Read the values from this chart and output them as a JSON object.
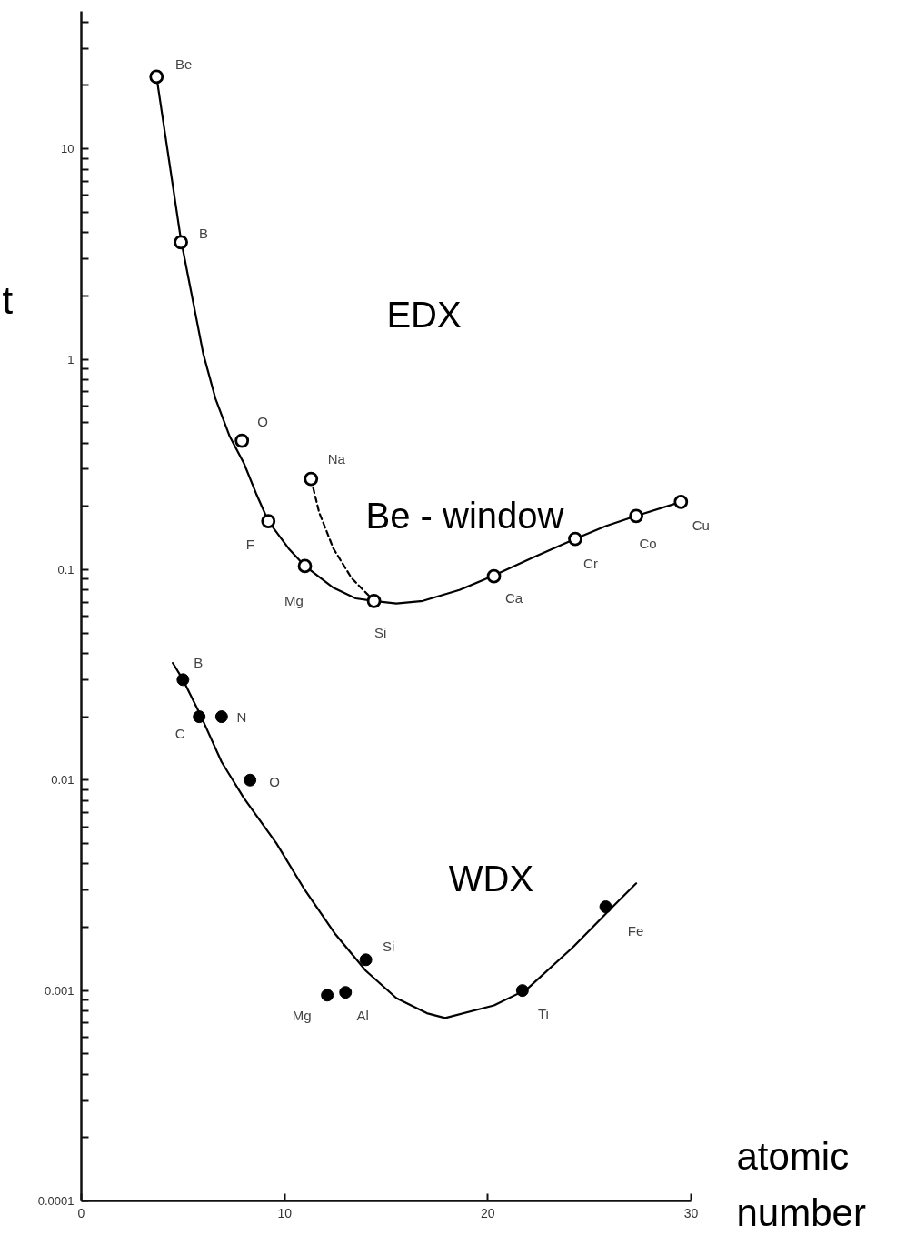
{
  "chart_data": {
    "type": "line",
    "xlabel": "atomic number",
    "ylabel": "t",
    "log": "y",
    "grid": false,
    "xlim": [
      0,
      30
    ],
    "xticks": [
      0,
      10,
      20,
      30
    ],
    "ylim": [
      0.0001,
      45
    ],
    "yticks": [
      0.0001,
      {
        "value": 0.0002,
        "label": null
      },
      {
        "value": 0.0003,
        "label": null
      },
      {
        "value": 0.0004,
        "label": null
      },
      {
        "value": 0.0005,
        "label": null
      },
      {
        "value": 0.0006,
        "label": null
      },
      {
        "value": 0.0007,
        "label": null
      },
      {
        "value": 0.0008,
        "label": null
      },
      {
        "value": 0.0009,
        "label": null
      },
      0.001,
      {
        "value": 0.002,
        "label": null
      },
      {
        "value": 0.003,
        "label": null
      },
      {
        "value": 0.004,
        "label": null
      },
      {
        "value": 0.005,
        "label": null
      },
      {
        "value": 0.006,
        "label": null
      },
      {
        "value": 0.007,
        "label": null
      },
      {
        "value": 0.008,
        "label": null
      },
      {
        "value": 0.009,
        "label": null
      },
      0.01,
      {
        "value": 0.02,
        "label": null
      },
      {
        "value": 0.03,
        "label": null
      },
      {
        "value": 0.04,
        "label": null
      },
      {
        "value": 0.05,
        "label": null
      },
      {
        "value": 0.06,
        "label": null
      },
      {
        "value": 0.07,
        "label": null
      },
      {
        "value": 0.08,
        "label": null
      },
      {
        "value": 0.09,
        "label": null
      },
      0.1,
      {
        "value": 0.2,
        "label": null
      },
      {
        "value": 0.3,
        "label": null
      },
      {
        "value": 0.4,
        "label": null
      },
      {
        "value": 0.5,
        "label": null
      },
      {
        "value": 0.6,
        "label": null
      },
      {
        "value": 0.7,
        "label": null
      },
      {
        "value": 0.8,
        "label": null
      },
      {
        "value": 0.9,
        "label": null
      },
      1,
      {
        "value": 2,
        "label": null
      },
      {
        "value": 3,
        "label": null
      },
      {
        "value": 4,
        "label": null
      },
      {
        "value": 5,
        "label": null
      },
      {
        "value": 6,
        "label": null
      },
      {
        "value": 7,
        "label": null
      },
      {
        "value": 8,
        "label": null
      },
      {
        "value": 9,
        "label": null
      },
      10,
      {
        "value": 20,
        "label": null
      },
      {
        "value": 30,
        "label": null
      },
      {
        "value": 40,
        "label": null
      }
    ],
    "series": [
      {
        "color": "#000000",
        "line_style": "solid",
        "x": [
          3.7,
          4.9,
          5.4,
          6.0,
          6.6,
          7.3,
          8.0,
          8.6,
          9.2,
          10.2,
          11.0,
          12.4,
          13.5,
          14.4,
          15.5,
          16.8,
          18.6,
          20.2,
          22.2,
          24.3,
          25.8,
          27.3,
          29.5
        ],
        "values": [
          22,
          3.7,
          2.1,
          1.06,
          0.65,
          0.43,
          0.32,
          0.23,
          0.17,
          0.126,
          0.104,
          0.082,
          0.073,
          0.071,
          0.069,
          0.071,
          0.08,
          0.093,
          0.114,
          0.14,
          0.161,
          0.18,
          0.21
        ]
      },
      {
        "color": "#000000",
        "line_style": "dashed",
        "x": [
          11.3,
          11.7,
          12.4,
          13.3,
          14.4
        ],
        "values": [
          0.27,
          0.187,
          0.126,
          0.091,
          0.071
        ]
      },
      {
        "type": "scatter",
        "color": "#000000",
        "marker": "circle",
        "x": [
          3.7,
          4.9,
          7.9,
          9.2,
          11.0,
          11.3,
          14.4,
          20.3,
          24.3,
          27.3,
          29.5
        ],
        "values": [
          22,
          3.6,
          0.41,
          0.17,
          0.104,
          0.27,
          0.071,
          0.093,
          0.14,
          0.18,
          0.21
        ]
      },
      {
        "name": "WDX",
        "color": "#000000",
        "line_style": "solid",
        "x": [
          4.5,
          5.0,
          5.9,
          6.9,
          8.0,
          9.6,
          11.0,
          12.5,
          14.0,
          15.5,
          17.0,
          17.9,
          20.3,
          21.9,
          24.2,
          26.0,
          27.3
        ],
        "values": [
          0.036,
          0.03,
          0.02,
          0.0122,
          0.0082,
          0.005,
          0.003,
          0.00185,
          0.00124,
          0.00092,
          0.00078,
          0.00074,
          0.00085,
          0.00101,
          0.00161,
          0.00242,
          0.00323
        ]
      },
      {
        "type": "scatter",
        "color": "#000000",
        "marker": "circle",
        "x": [
          5.0,
          5.8,
          6.9,
          8.3,
          12.1,
          13.0,
          14.0,
          21.7,
          25.8
        ],
        "values": [
          0.03,
          0.02,
          0.02,
          0.01,
          0.00095,
          0.00098,
          0.0014,
          0.001,
          0.0025
        ]
      }
    ],
    "annotations": [
      {
        "text": "Be",
        "x": 3.7,
        "y": 22
      },
      {
        "text": "B",
        "x": 4.9,
        "y": 3.6
      },
      {
        "text": "O",
        "x": 7.9,
        "y": 0.41
      },
      {
        "text": "F",
        "x": 9.2,
        "y": 0.17
      },
      {
        "text": "Mg",
        "x": 11.0,
        "y": 0.104
      },
      {
        "text": "Na",
        "x": 11.3,
        "y": 0.27
      },
      {
        "text": "Si",
        "x": 14.4,
        "y": 0.071
      },
      {
        "text": "Ca",
        "x": 20.3,
        "y": 0.093
      },
      {
        "text": "Cr",
        "x": 24.3,
        "y": 0.14
      },
      {
        "text": "Co",
        "x": 27.3,
        "y": 0.18
      },
      {
        "text": "Cu",
        "x": 29.5,
        "y": 0.21
      },
      {
        "text": "B",
        "x": 5.0,
        "y": 0.03
      },
      {
        "text": "C",
        "x": 5.8,
        "y": 0.02
      },
      {
        "text": "N",
        "x": 6.9,
        "y": 0.02
      },
      {
        "text": "O",
        "x": 8.3,
        "y": 0.01
      },
      {
        "text": "Mg",
        "x": 12.1,
        "y": 0.00095
      },
      {
        "text": "Al",
        "x": 13.0,
        "y": 0.00098
      },
      {
        "text": "Si",
        "x": 14.0,
        "y": 0.0014
      },
      {
        "text": "Ti",
        "x": 21.7,
        "y": 0.001
      },
      {
        "text": "Fe",
        "x": 25.8,
        "y": 0.0025
      },
      "EDX",
      "Be - window"
    ]
  }
}
